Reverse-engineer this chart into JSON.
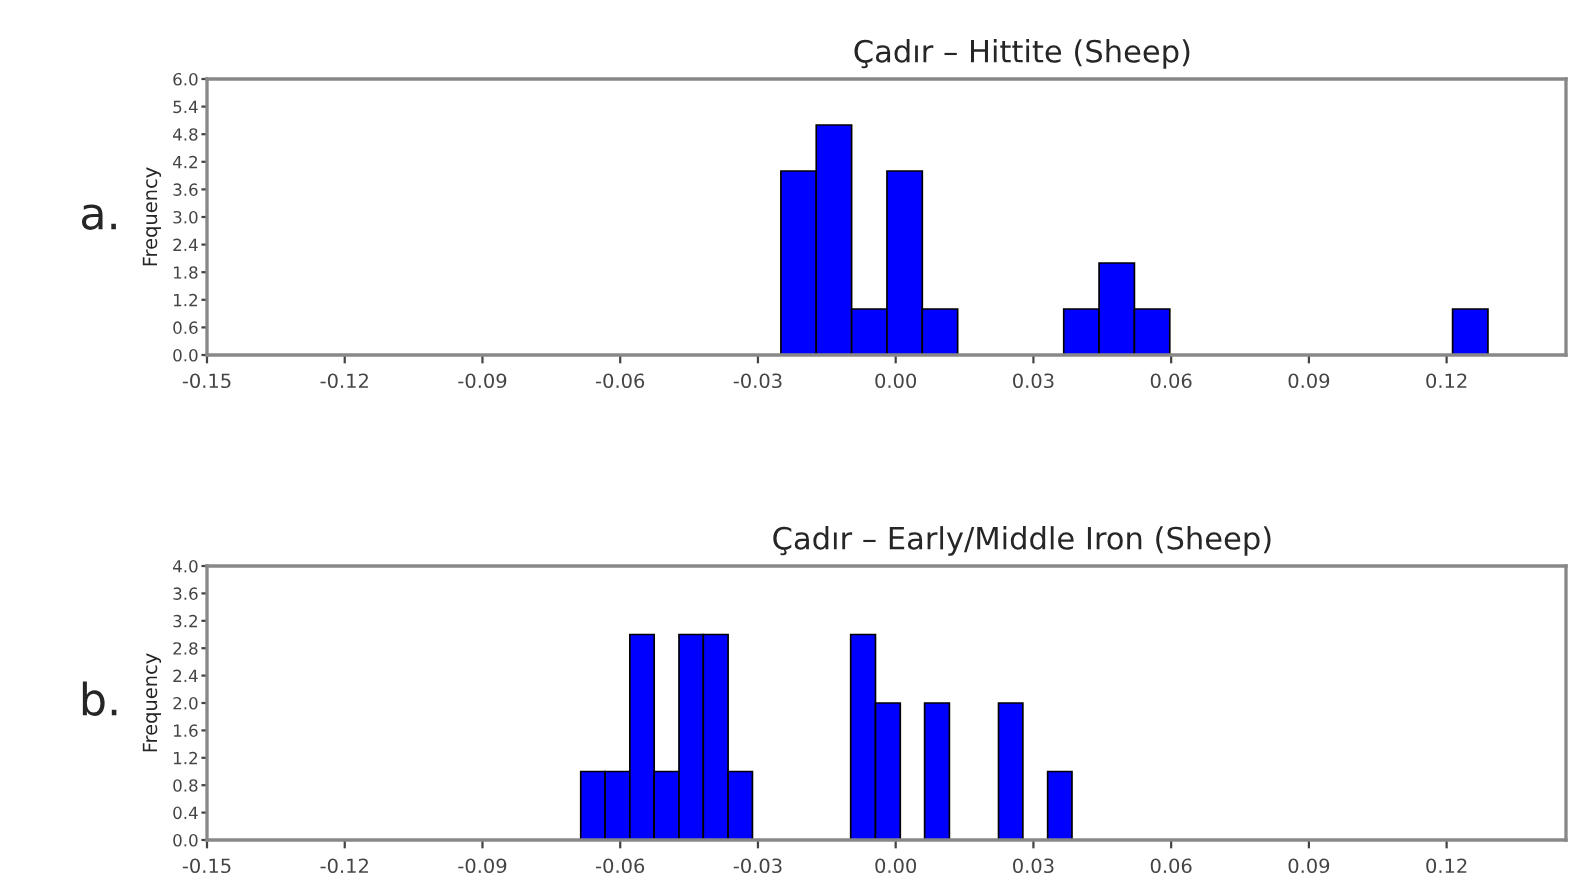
{
  "chart_data": [
    {
      "type": "histogram",
      "title": "Çadır – Hittite (Sheep)",
      "ylabel": "Frequency",
      "annotations": [
        "a."
      ],
      "color": "#0000ff",
      "bins": [
        -0.025,
        -0.0173,
        -0.0096,
        -0.0019,
        0.0058,
        0.0135,
        0.0212,
        0.0289,
        0.0366,
        0.0443,
        0.052,
        0.0597,
        0.0674,
        0.0751,
        0.0828,
        0.0905,
        0.0982,
        0.1059,
        0.1136,
        0.1213,
        0.129
      ],
      "values": [
        4,
        5,
        1,
        4,
        1,
        0,
        0,
        0,
        1,
        2,
        1,
        0,
        0,
        0,
        0,
        0,
        0,
        0,
        0,
        1
      ],
      "xlim": [
        -0.15,
        0.146
      ],
      "xticks": [
        {
          "value": -0.15,
          "label": "-0.15"
        },
        {
          "value": -0.12,
          "label": "-0.12"
        },
        {
          "value": -0.09,
          "label": "-0.09"
        },
        {
          "value": -0.06,
          "label": "-0.06"
        },
        {
          "value": -0.03,
          "label": "-0.03"
        },
        {
          "value": 0,
          "label": "0.00"
        },
        {
          "value": 0.03,
          "label": "0.03"
        },
        {
          "value": 0.06,
          "label": "0.06"
        },
        {
          "value": 0.09,
          "label": "0.09"
        },
        {
          "value": 0.12,
          "label": "0.12"
        }
      ],
      "ylim": [
        0,
        6
      ],
      "yticks": [
        {
          "value": 0,
          "label": "0.0"
        },
        {
          "value": 0.6,
          "label": "0.6"
        },
        {
          "value": 1.2,
          "label": "1.2"
        },
        {
          "value": 1.8,
          "label": "1.8"
        },
        {
          "value": 2.4,
          "label": "2.4"
        },
        {
          "value": 3.0,
          "label": "3.0"
        },
        {
          "value": 3.6,
          "label": "3.6"
        },
        {
          "value": 4.2,
          "label": "4.2"
        },
        {
          "value": 4.8,
          "label": "4.8"
        },
        {
          "value": 5.4,
          "label": "5.4"
        },
        {
          "value": 6.0,
          "label": "6.0"
        }
      ],
      "grid": false,
      "legend": false
    },
    {
      "type": "histogram",
      "title": "Çadır – Early/Middle Iron (Sheep)",
      "ylabel": "Frequency",
      "annotations": [
        "b."
      ],
      "color": "#0000ff",
      "bins": [
        -0.0686,
        -0.0633,
        -0.0579,
        -0.0526,
        -0.0472,
        -0.0419,
        -0.0365,
        -0.0312,
        -0.0258,
        -0.0205,
        -0.0151,
        -0.0098,
        -0.0044,
        0.001,
        0.0063,
        0.0117,
        0.017,
        0.0224,
        0.0277,
        0.0331,
        0.0384
      ],
      "values": [
        1,
        1,
        3,
        1,
        3,
        3,
        1,
        0,
        0,
        0,
        0,
        3,
        2,
        0,
        2,
        0,
        0,
        2,
        0,
        1
      ],
      "xlim": [
        -0.15,
        0.146
      ],
      "xticks": [
        {
          "value": -0.15,
          "label": "-0.15"
        },
        {
          "value": -0.12,
          "label": "-0.12"
        },
        {
          "value": -0.09,
          "label": "-0.09"
        },
        {
          "value": -0.06,
          "label": "-0.06"
        },
        {
          "value": -0.03,
          "label": "-0.03"
        },
        {
          "value": 0,
          "label": "0.00"
        },
        {
          "value": 0.03,
          "label": "0.03"
        },
        {
          "value": 0.06,
          "label": "0.06"
        },
        {
          "value": 0.09,
          "label": "0.09"
        },
        {
          "value": 0.12,
          "label": "0.12"
        }
      ],
      "ylim": [
        0,
        4
      ],
      "yticks": [
        {
          "value": 0,
          "label": "0.0"
        },
        {
          "value": 0.4,
          "label": "0.4"
        },
        {
          "value": 0.8,
          "label": "0.8"
        },
        {
          "value": 1.2,
          "label": "1.2"
        },
        {
          "value": 1.6,
          "label": "1.6"
        },
        {
          "value": 2.0,
          "label": "2.0"
        },
        {
          "value": 2.4,
          "label": "2.4"
        },
        {
          "value": 2.8,
          "label": "2.8"
        },
        {
          "value": 3.2,
          "label": "3.2"
        },
        {
          "value": 3.6,
          "label": "3.6"
        },
        {
          "value": 4.0,
          "label": "4.0"
        }
      ],
      "grid": false,
      "legend": false
    }
  ]
}
